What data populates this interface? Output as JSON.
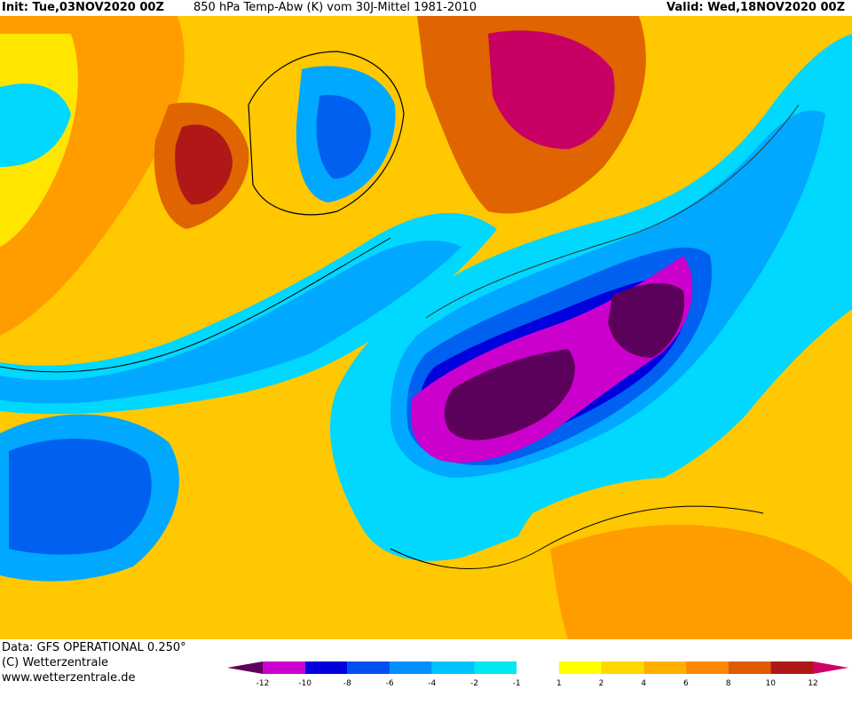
{
  "header": {
    "init": "Init: Tue,03NOV2020 00Z",
    "title": "850 hPa Temp-Abw (K) vom 30J-Mittel 1981-2010",
    "valid": "Valid: Wed,18NOV2020 00Z"
  },
  "footer": {
    "data_line": "Data: GFS OPERATIONAL 0.250°",
    "copyright": "(C) Wetterzentrale",
    "url": "www.wetterzentrale.de"
  },
  "legend": {
    "colors": [
      "#5b005b",
      "#cc00cc",
      "#0000dd",
      "#0050f0",
      "#0090ff",
      "#00c4ff",
      "#00e8f0",
      "#ffffff",
      "#ffff00",
      "#ffd800",
      "#ffb000",
      "#ff8800",
      "#e05a00",
      "#b01818",
      "#d0006a"
    ],
    "labels": [
      "-12",
      "-10",
      "-8",
      "-6",
      "-4",
      "-2",
      "-1",
      "1",
      "2",
      "4",
      "6",
      "8",
      "10",
      "12"
    ]
  },
  "map": {
    "colors": {
      "ocean_warm": "#ffc800",
      "warm_light": "#ffe600",
      "orange": "#ff9c00",
      "dark_orange": "#e06400",
      "red": "#b01818",
      "magenta": "#c80064",
      "white": "#ffffff",
      "cyan": "#00d8ff",
      "light_blue": "#00a8ff",
      "blue": "#0060f0",
      "dark_blue": "#0000dd",
      "purple": "#cc00cc",
      "deep_purple": "#5b005b"
    }
  }
}
